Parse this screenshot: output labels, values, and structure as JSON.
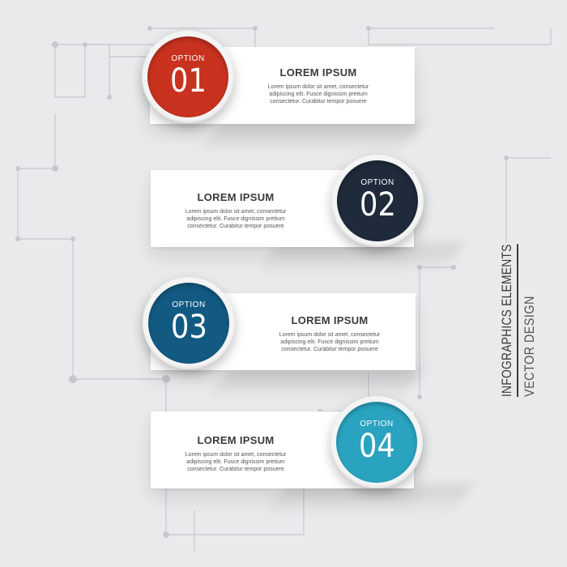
{
  "side_title": {
    "line1": "INFOGRAPHICS ELEMENTS",
    "line2": "VECTOR DESIGN"
  },
  "options": [
    {
      "label": "OPTION",
      "number": "01",
      "color": "#c8321f",
      "heading": "LOREM IPSUM",
      "body": [
        "Lorem ipsum dolor sit amet, consectetur",
        "adipiscing elit. Fusce dignissim pretium",
        "consectetur. Curabitur tempor posuere"
      ]
    },
    {
      "label": "OPTION",
      "number": "02",
      "color": "#1f2a3a",
      "heading": "LOREM IPSUM",
      "body": [
        "Lorem ipsum dolor sit amet, consectetur",
        "adipiscing elit. Fusce dignissim pretium",
        "consectetur. Curabitur tempor posuere"
      ]
    },
    {
      "label": "OPTION",
      "number": "03",
      "color": "#135a82",
      "heading": "LOREM IPSUM",
      "body": [
        "Lorem ipsum dolor sit amet, consectetur",
        "adipiscing elit. Fusce dignissim pretium",
        "consectetur. Curabitur tempor posuere"
      ]
    },
    {
      "label": "OPTION",
      "number": "04",
      "color": "#2aa3c0",
      "heading": "LOREM IPSUM",
      "body": [
        "Lorem ipsum dolor sit amet, consectetur",
        "adipiscing elit. Fusce dignissim pretium",
        "consectetur. Curabitur tempor posuere"
      ]
    }
  ]
}
